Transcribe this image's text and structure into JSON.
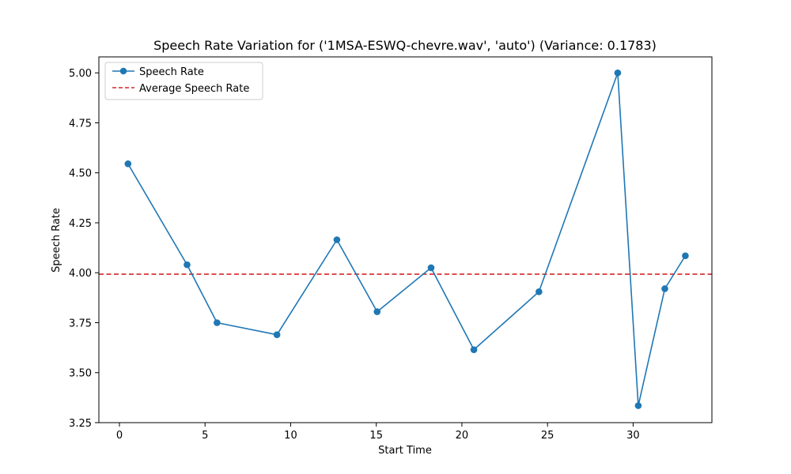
{
  "chart_data": {
    "type": "line",
    "title": "Speech Rate Variation for ('1MSA-ESWQ-chevre.wav', 'auto') (Variance: 0.1783)",
    "xlabel": "Start Time",
    "ylabel": "Speech Rate",
    "xlim": [
      -1.2,
      34.6
    ],
    "ylim": [
      3.25,
      5.08
    ],
    "xticks": [
      0,
      5,
      10,
      15,
      20,
      25,
      30
    ],
    "yticks": [
      3.25,
      3.5,
      3.75,
      4.0,
      4.25,
      4.5,
      4.75,
      5.0
    ],
    "xtick_labels": [
      "0",
      "5",
      "10",
      "15",
      "20",
      "25",
      "30"
    ],
    "ytick_labels": [
      "3.25",
      "3.50",
      "3.75",
      "4.00",
      "4.25",
      "4.50",
      "4.75",
      "5.00"
    ],
    "legend_position": "upper-left",
    "grid": false,
    "series": [
      {
        "name": "Speech Rate",
        "color": "#1f77b4",
        "style": "line-with-markers",
        "x": [
          0.5,
          3.95,
          5.7,
          9.2,
          12.7,
          15.05,
          18.2,
          20.7,
          24.5,
          29.1,
          30.3,
          31.85,
          33.05
        ],
        "y": [
          4.545,
          4.04,
          3.75,
          3.69,
          4.165,
          3.805,
          4.025,
          3.615,
          3.905,
          5.0,
          3.335,
          3.92,
          4.085
        ]
      }
    ],
    "reference_lines": [
      {
        "name": "Average Speech Rate",
        "color": "#d62728",
        "style": "dashed",
        "y": 3.993
      }
    ]
  }
}
